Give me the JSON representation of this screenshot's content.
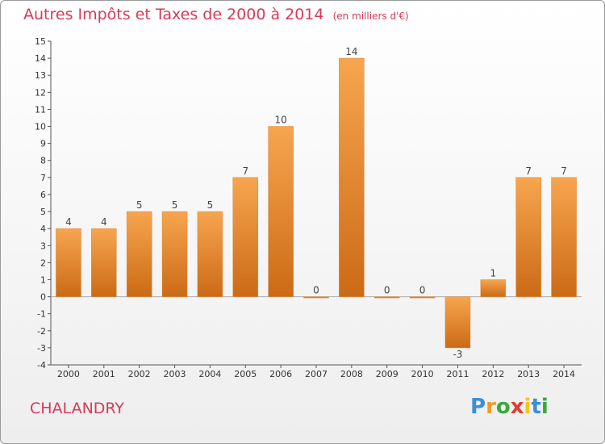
{
  "header": {
    "title": "Autres Impôts et Taxes de 2000 à 2014",
    "unit": "(en milliers d'€)"
  },
  "footer": {
    "commune": "CHALANDRY",
    "brand_letters": [
      "P",
      "r",
      "o",
      "x",
      "i",
      "t",
      "i"
    ],
    "brand_colors": [
      "#3a8fd6",
      "#f29b1f",
      "#3aa83a",
      "#e23b2f",
      "#f2c51f",
      "#3a8fd6",
      "#3aa83a"
    ]
  },
  "chart_data": {
    "type": "bar",
    "categories": [
      "2000",
      "2001",
      "2002",
      "2003",
      "2004",
      "2005",
      "2006",
      "2007",
      "2008",
      "2009",
      "2010",
      "2011",
      "2012",
      "2013",
      "2014"
    ],
    "values": [
      4,
      4,
      5,
      5,
      5,
      7,
      10,
      0,
      14,
      0,
      0,
      -3,
      1,
      7,
      7
    ],
    "data_labels": [
      "4",
      "4",
      "5",
      "5",
      "5",
      "7",
      "10",
      "0",
      "14",
      "0",
      "0",
      "-3",
      "1",
      "7",
      "7"
    ],
    "y_ticks": [
      -4,
      -3,
      -2,
      -1,
      0,
      1,
      2,
      3,
      4,
      5,
      6,
      7,
      8,
      9,
      10,
      11,
      12,
      13,
      14,
      15
    ],
    "y_tick_labels": [
      "-4",
      "-3",
      "-2",
      "-1",
      "0",
      "1",
      "2",
      "3",
      "4",
      "5",
      "6",
      "7",
      "8",
      "9",
      "10",
      "11",
      "12",
      "13",
      "14",
      "15"
    ],
    "ylim": [
      -4,
      15
    ],
    "grid": false,
    "bar_color_light": "#f7a54f",
    "bar_color_dark": "#cc6a16",
    "title": "Autres Impôts et Taxes de 2000 à 2014",
    "xlabel": "",
    "ylabel": ""
  }
}
